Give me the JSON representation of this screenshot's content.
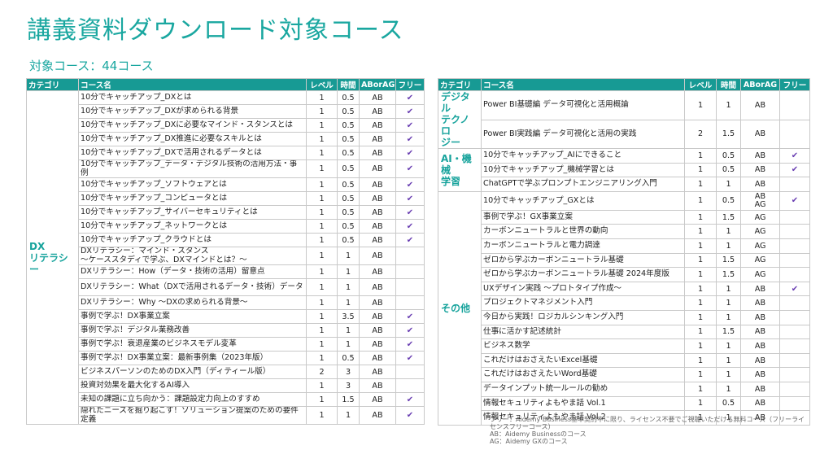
{
  "title": "講義資料ダウンロード対象コース",
  "subtitle": "対象コース：44コース",
  "headers": {
    "category": "カテゴリ",
    "course": "コース名",
    "level": "レベル",
    "time": "時間",
    "aborag": "ABorAG",
    "free": "フリー"
  },
  "check_mark": "✔",
  "left": {
    "category": "DX\nリテラシー",
    "rows": [
      {
        "name": "10分でキャッチアップ_DXとは",
        "level": "1",
        "time": "0.5",
        "type": "AB",
        "free": true
      },
      {
        "name": "10分でキャッチアップ_DXが求められる背景",
        "level": "1",
        "time": "0.5",
        "type": "AB",
        "free": true
      },
      {
        "name": "10分でキャッチアップ_DXに必要なマインド・スタンスとは",
        "level": "1",
        "time": "0.5",
        "type": "AB",
        "free": true
      },
      {
        "name": "10分でキャッチアップ_DX推進に必要なスキルとは",
        "level": "1",
        "time": "0.5",
        "type": "AB",
        "free": true
      },
      {
        "name": "10分でキャッチアップ_DXで活用されるデータとは",
        "level": "1",
        "time": "0.5",
        "type": "AB",
        "free": true
      },
      {
        "name": "10分でキャッチアップ_データ・デジタル技術の活用方法・事例",
        "level": "1",
        "time": "0.5",
        "type": "AB",
        "free": true,
        "tall": true
      },
      {
        "name": "10分でキャッチアップ_ソフトウェアとは",
        "level": "1",
        "time": "0.5",
        "type": "AB",
        "free": true
      },
      {
        "name": "10分でキャッチアップ_コンピュータとは",
        "level": "1",
        "time": "0.5",
        "type": "AB",
        "free": true
      },
      {
        "name": "10分でキャッチアップ_サイバーセキュリティとは",
        "level": "1",
        "time": "0.5",
        "type": "AB",
        "free": true
      },
      {
        "name": "10分でキャッチアップ_ネットワークとは",
        "level": "1",
        "time": "0.5",
        "type": "AB",
        "free": true
      },
      {
        "name": "10分でキャッチアップ_クラウドとは",
        "level": "1",
        "time": "0.5",
        "type": "AB",
        "free": true
      },
      {
        "name": "DXリテラシー：マインド・スタンス\n～ケーススタディで学ぶ、DXマインドとは？～",
        "level": "1",
        "time": "1",
        "type": "AB",
        "free": false,
        "tall": true
      },
      {
        "name": "DXリテラシー：How（データ・技術の活用）留意点",
        "level": "1",
        "time": "1",
        "type": "AB",
        "free": false
      },
      {
        "name": "DXリテラシー：What（DXで活用されるデータ・技術）データ",
        "level": "1",
        "time": "1",
        "type": "AB",
        "free": false,
        "tall": true
      },
      {
        "name": "DXリテラシー：Why ～DXの求められる背景～",
        "level": "1",
        "time": "1",
        "type": "AB",
        "free": false
      },
      {
        "name": "事例で学ぶ！DX事業立案",
        "level": "1",
        "time": "3.5",
        "type": "AB",
        "free": true
      },
      {
        "name": "事例で学ぶ！デジタル業務改善",
        "level": "1",
        "time": "1",
        "type": "AB",
        "free": true
      },
      {
        "name": "事例で学ぶ！衰退産業のビジネスモデル変革",
        "level": "1",
        "time": "1",
        "type": "AB",
        "free": true
      },
      {
        "name": "事例で学ぶ！DX事業立案：最新事例集（2023年版）",
        "level": "1",
        "time": "0.5",
        "type": "AB",
        "free": true
      },
      {
        "name": "ビジネスパーソンのためのDX入門（ディティール版）",
        "level": "2",
        "time": "3",
        "type": "AB",
        "free": false
      },
      {
        "name": "投資対効果を最大化するAI導入",
        "level": "1",
        "time": "3",
        "type": "AB",
        "free": false
      },
      {
        "name": "未知の課題に立ち向かう：課題設定力向上のすすめ",
        "level": "1",
        "time": "1.5",
        "type": "AB",
        "free": true
      },
      {
        "name": "隠れたニーズを掘り起こす！ソリューション提案のための要件定義",
        "level": "1",
        "time": "1",
        "type": "AB",
        "free": true,
        "tall": true
      }
    ]
  },
  "right": {
    "groups": [
      {
        "category": "デジタル\nテクノロ\nジー",
        "rows": [
          {
            "name": "Power BI基礎編 データ可視化と活用概論",
            "level": "1",
            "time": "1",
            "type": "AB",
            "free": false,
            "tall": true
          },
          {
            "name": "Power BI実践編 データ可視化と活用の実践",
            "level": "2",
            "time": "1.5",
            "type": "AB",
            "free": false,
            "tall": true
          }
        ]
      },
      {
        "category": "AI・機械\n学習",
        "rows": [
          {
            "name": "10分でキャッチアップ_AIにできること",
            "level": "1",
            "time": "0.5",
            "type": "AB",
            "free": true
          },
          {
            "name": "10分でキャッチアップ_機械学習とは",
            "level": "1",
            "time": "0.5",
            "type": "AB",
            "free": true
          },
          {
            "name": "ChatGPTで学ぶプロンプトエンジニアリング入門",
            "level": "1",
            "time": "1",
            "type": "AB",
            "free": false
          }
        ]
      },
      {
        "category": "その他",
        "rows": [
          {
            "name": "10分でキャッチアップ_GXとは",
            "level": "1",
            "time": "0.5",
            "type": "AB\nAG",
            "free": true,
            "tall": true
          },
          {
            "name": "事例で学ぶ！GX事業立案",
            "level": "1",
            "time": "1.5",
            "type": "AG",
            "free": false
          },
          {
            "name": "カーボンニュートラルと世界の動向",
            "level": "1",
            "time": "1",
            "type": "AG",
            "free": false
          },
          {
            "name": "カーボンニュートラルと電力調達",
            "level": "1",
            "time": "1",
            "type": "AG",
            "free": false
          },
          {
            "name": "ゼロから学ぶカーボンニュートラル基礎",
            "level": "1",
            "time": "1.5",
            "type": "AG",
            "free": false
          },
          {
            "name": "ゼロから学ぶカーボンニュートラル基礎 2024年度版",
            "level": "1",
            "time": "1.5",
            "type": "AG",
            "free": false
          },
          {
            "name": "UXデザイン実践 ～プロトタイプ作成～",
            "level": "1",
            "time": "1",
            "type": "AB",
            "free": true
          },
          {
            "name": "プロジェクトマネジメント入門",
            "level": "1",
            "time": "1",
            "type": "AB",
            "free": false
          },
          {
            "name": "今日から実践！ロジカルシンキング入門",
            "level": "1",
            "time": "1",
            "type": "AB",
            "free": false
          },
          {
            "name": "仕事に活かす記述統計",
            "level": "1",
            "time": "1.5",
            "type": "AB",
            "free": false
          },
          {
            "name": "ビジネス数学",
            "level": "1",
            "time": "1",
            "type": "AB",
            "free": false
          },
          {
            "name": "これだけはおさえたいExcel基礎",
            "level": "1",
            "time": "1",
            "type": "AB",
            "free": false
          },
          {
            "name": "これだけはおさえたいWord基礎",
            "level": "1",
            "time": "1",
            "type": "AB",
            "free": false
          },
          {
            "name": "データインプット統一ルールの勧め",
            "level": "1",
            "time": "1",
            "type": "AB",
            "free": false
          },
          {
            "name": "情報セキュリティよもやま話 Vol.1",
            "level": "1",
            "time": "0.5",
            "type": "AB",
            "free": false
          },
          {
            "name": "情報セキュリティよもやま話 Vol.2",
            "level": "1",
            "time": "1",
            "type": "AB",
            "free": false
          }
        ]
      }
    ]
  },
  "notes": [
    "フリー：Aidemy Business基本契約中に限り、ライセンス不要でご視聴いただける無料コース（フリーライセンスフリーコース）",
    "AB：Aidemy Businessのコース",
    "AG：Aidemy GXのコース"
  ]
}
